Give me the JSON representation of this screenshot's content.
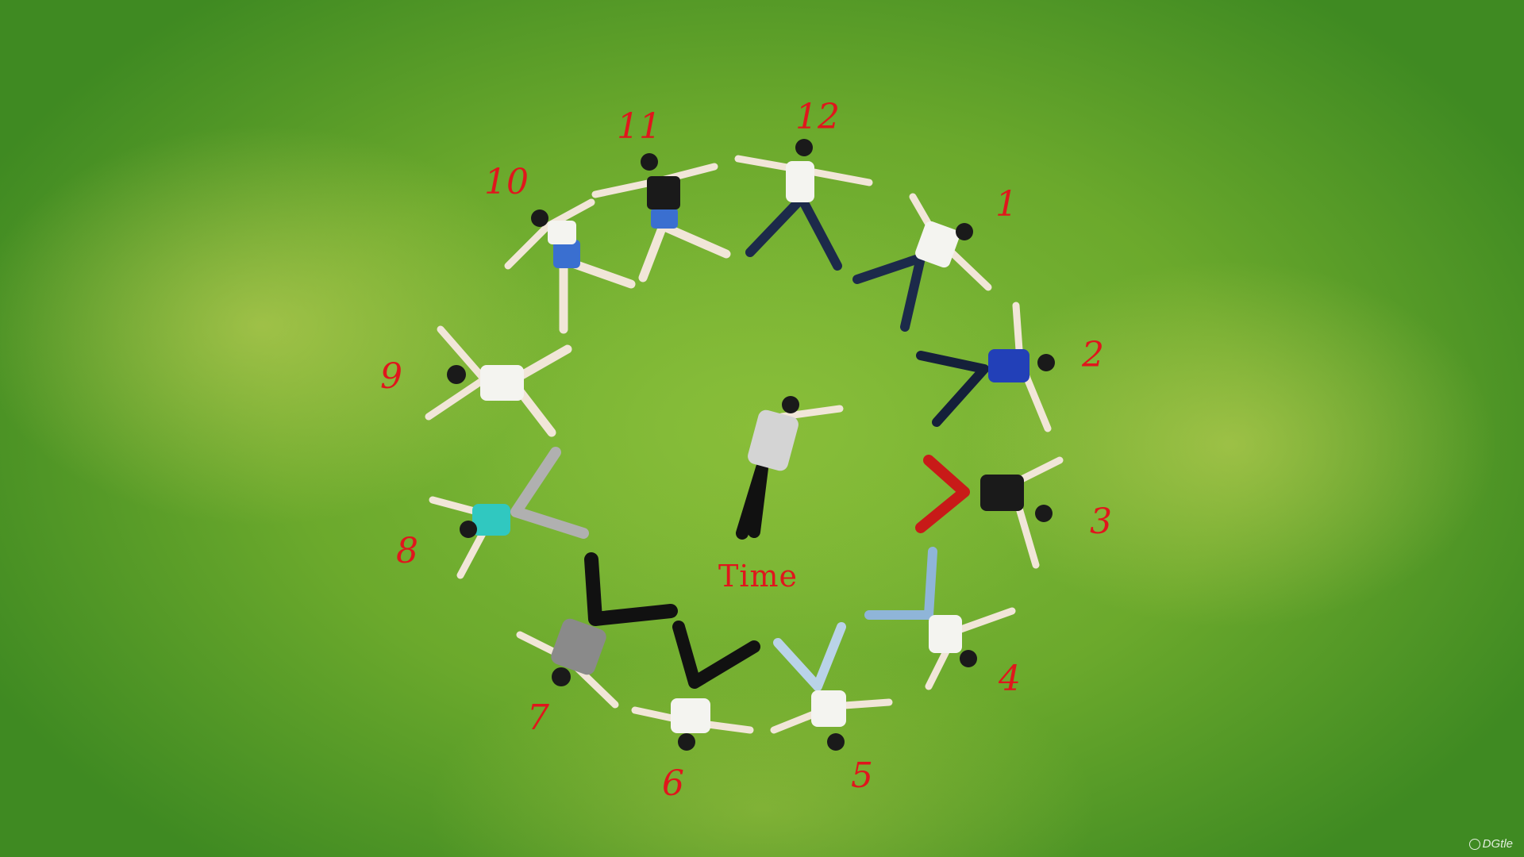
{
  "clock_numbers": [
    "12",
    "1",
    "2",
    "3",
    "4",
    "5",
    "6",
    "7",
    "8",
    "9",
    "10",
    "11"
  ],
  "center_text": "Time",
  "watermark": "DGtle",
  "colors": {
    "grass": "#6fa830",
    "label_red": "#e0161c"
  }
}
